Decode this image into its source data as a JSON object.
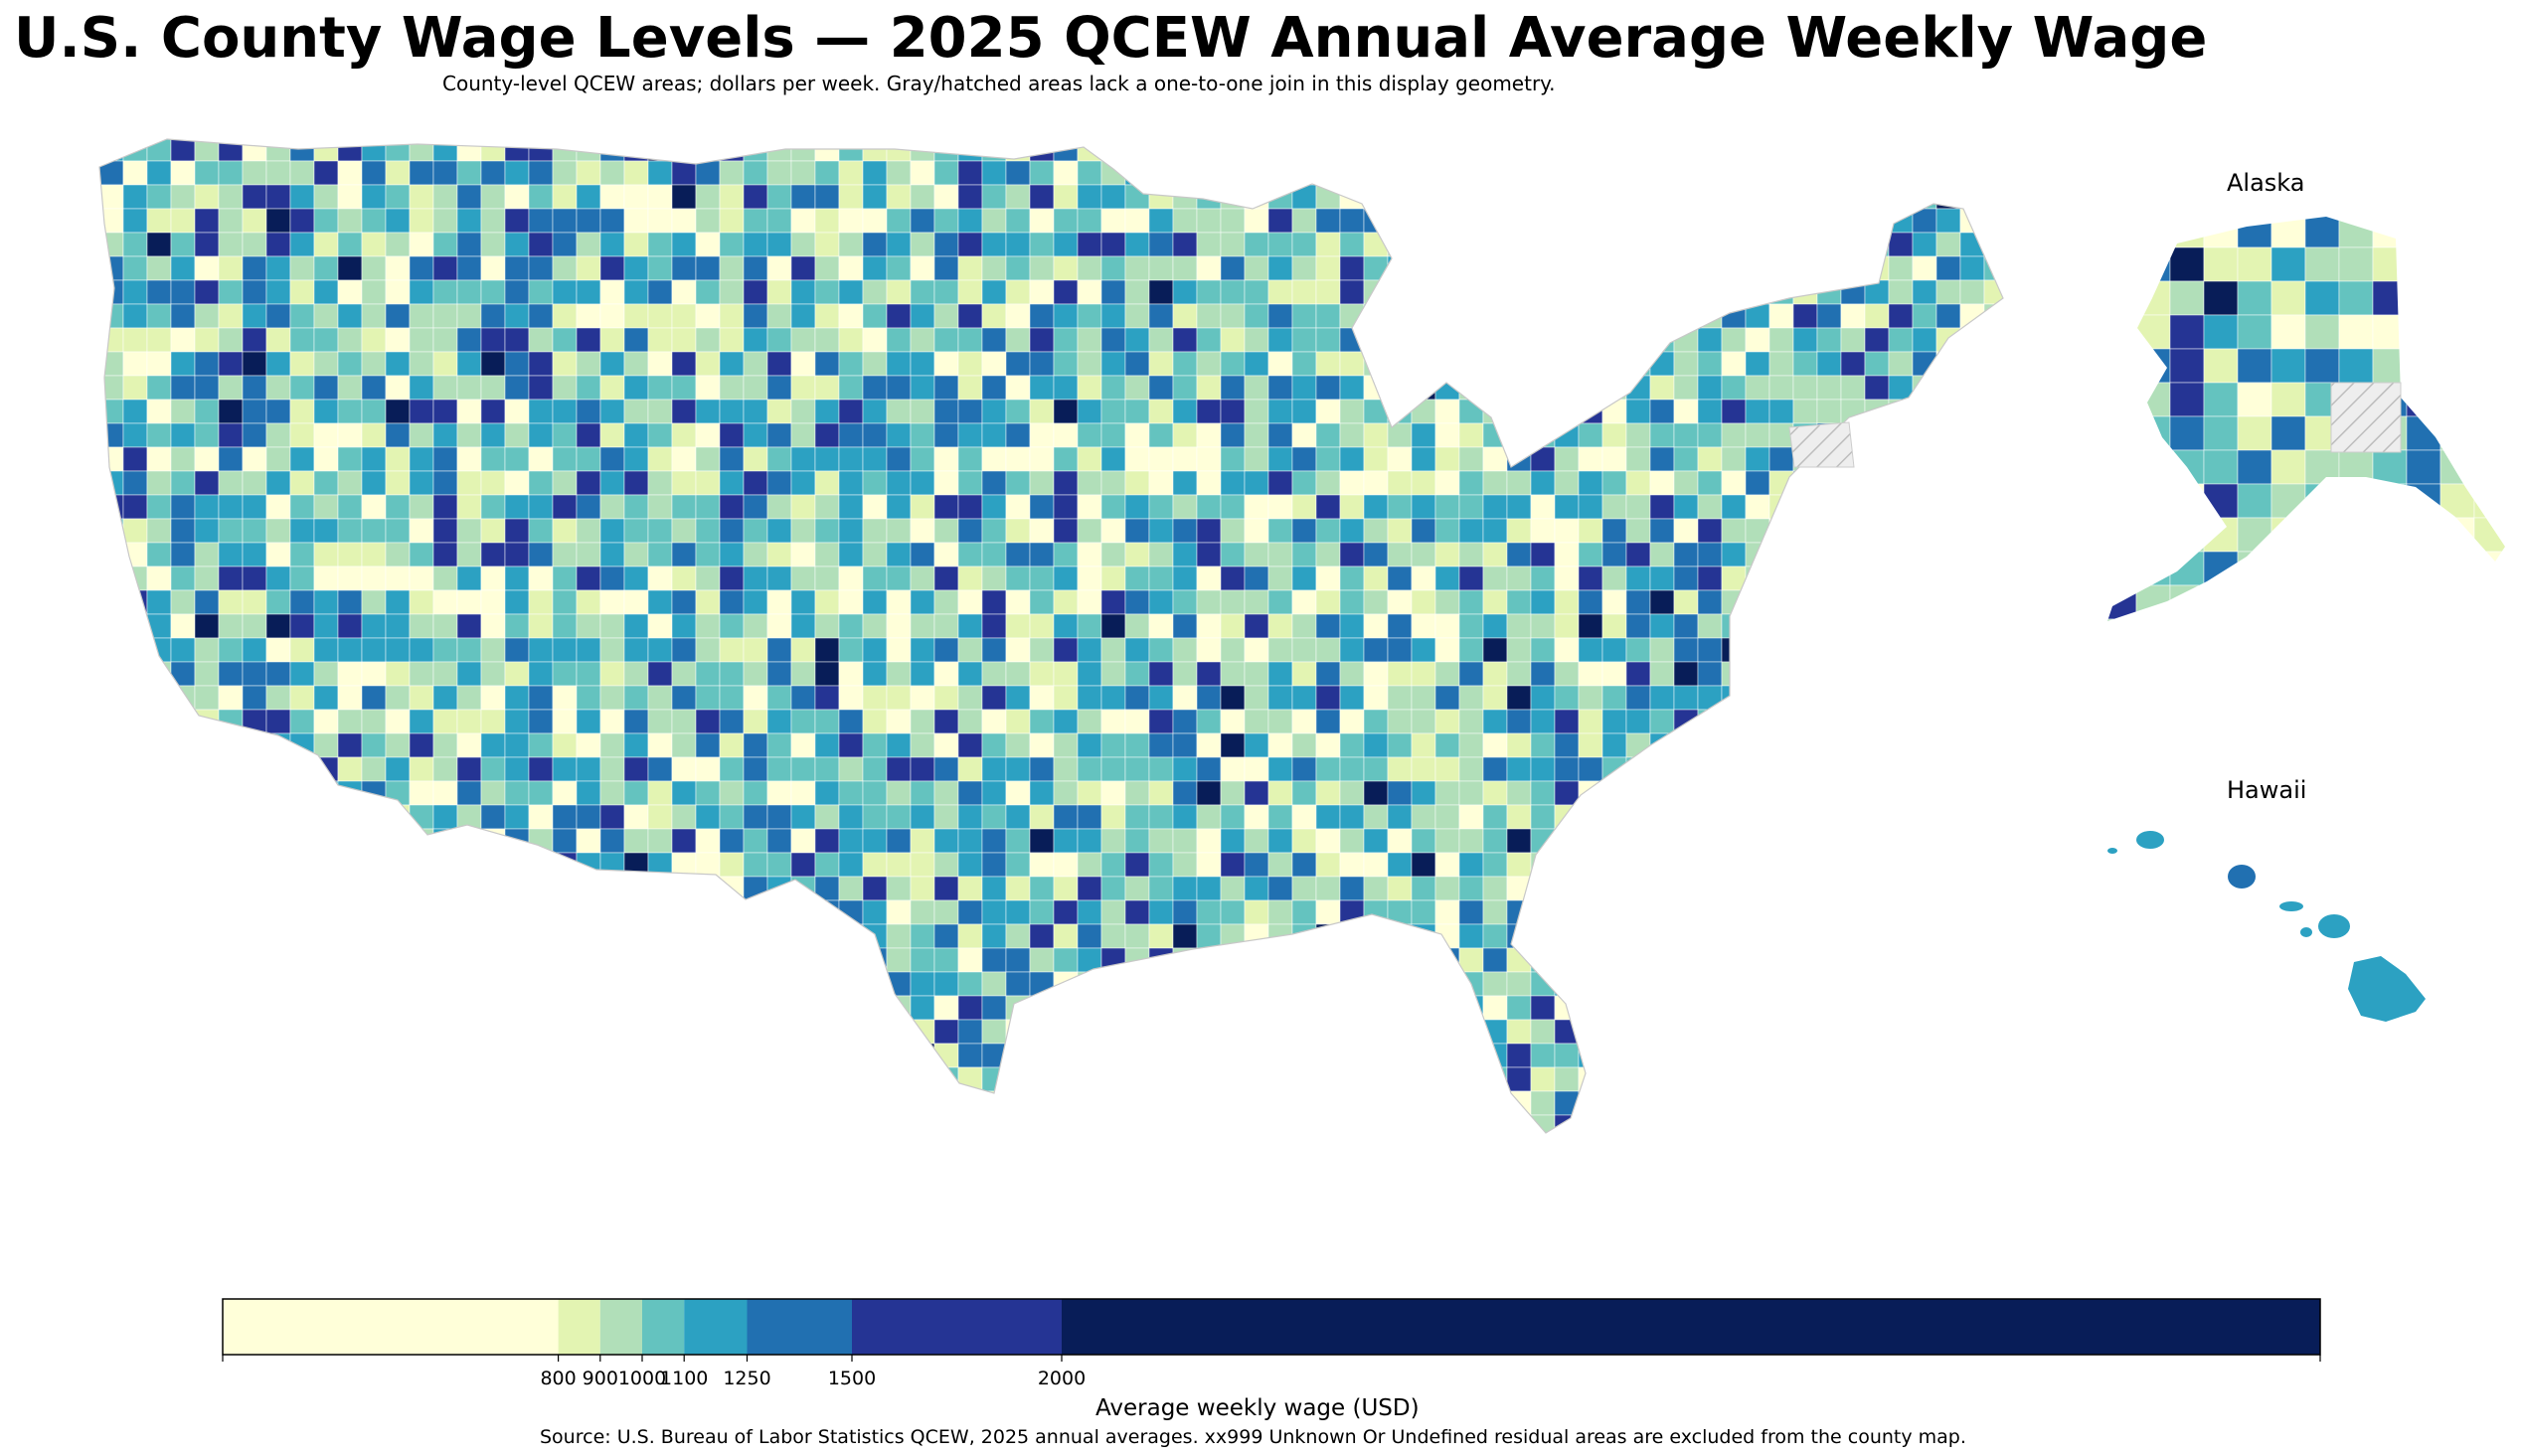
{
  "title": "U.S. County Wage Levels — 2025 QCEW Annual Average Weekly Wage",
  "subtitle": "County-level QCEW areas; dollars per week. Gray/hatched areas lack a one-to-one join in this display geometry.",
  "insets": {
    "alaska": "Alaska",
    "hawaii": "Hawaii"
  },
  "colorbar": {
    "label": "Average weekly wage (USD)",
    "min": 0,
    "max": 5000,
    "ticks": [
      "800",
      "900",
      "1000",
      "1100",
      "1250",
      "1500",
      "2000"
    ],
    "bins": [
      {
        "from": 0,
        "to": 800,
        "color": "#ffffd9"
      },
      {
        "from": 800,
        "to": 900,
        "color": "#e3f4b2"
      },
      {
        "from": 900,
        "to": 1000,
        "color": "#b1dfb9"
      },
      {
        "from": 1000,
        "to": 1100,
        "color": "#64c3bf"
      },
      {
        "from": 1100,
        "to": 1250,
        "color": "#2ca1c2"
      },
      {
        "from": 1250,
        "to": 1500,
        "color": "#2170b1"
      },
      {
        "from": 1500,
        "to": 2000,
        "color": "#253494"
      },
      {
        "from": 2000,
        "to": 5000,
        "color": "#081d58"
      }
    ]
  },
  "missing_color": "#d9d9d9",
  "source": "Source: U.S. Bureau of Labor Statistics QCEW, 2025 annual averages. xx999 Unknown Or Undefined residual areas are excluded from the county map."
}
